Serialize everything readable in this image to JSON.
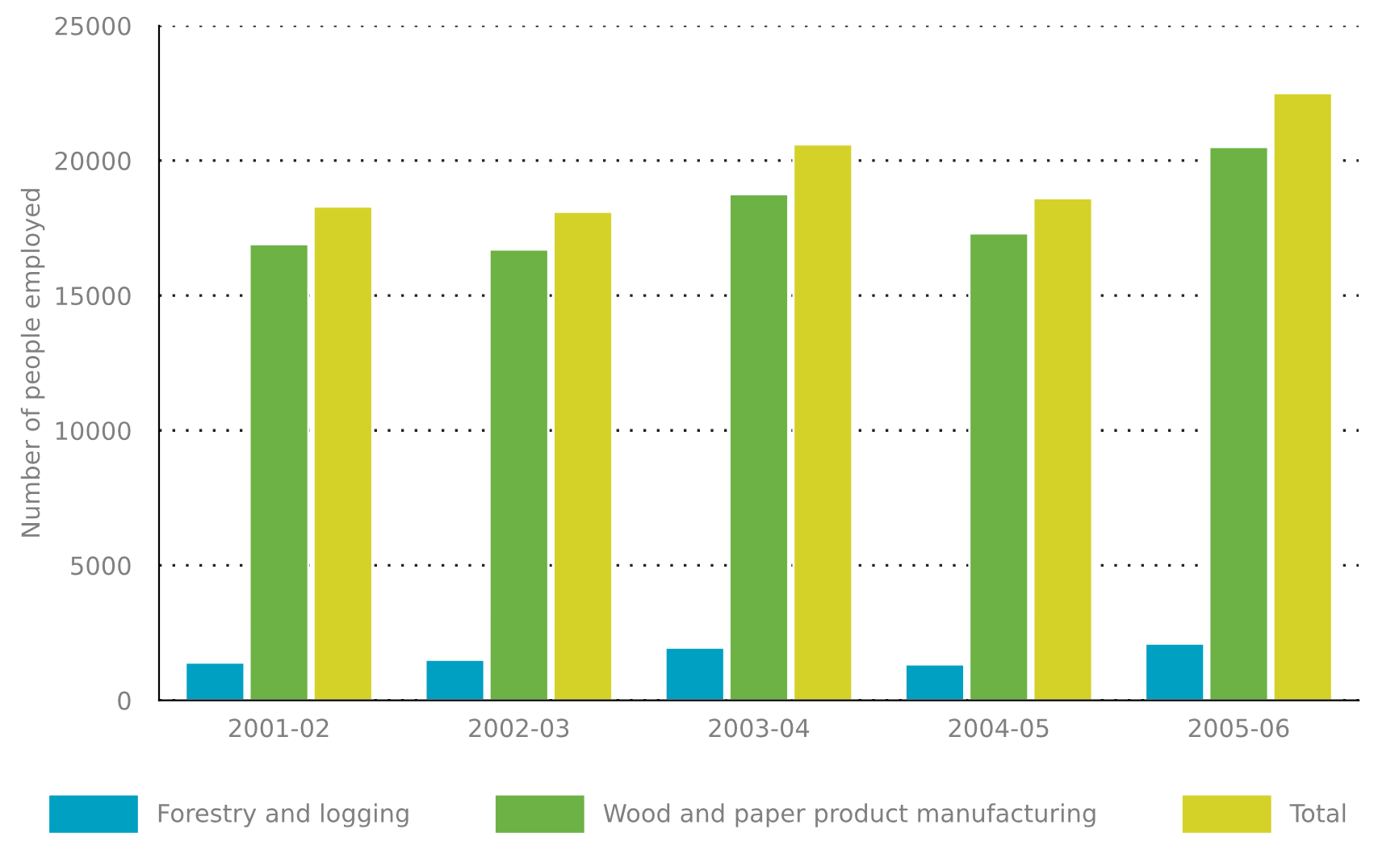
{
  "chart_data": {
    "type": "bar",
    "ylabel": "Number of people employed",
    "categories": [
      "2001-02",
      "2002-03",
      "2003-04",
      "2004-05",
      "2005-06"
    ],
    "series": [
      {
        "name": "Forestry and logging",
        "color": "#00a0c3",
        "values": [
          1400,
          1500,
          1950,
          1330,
          2100
        ]
      },
      {
        "name": "Wood and paper product manufacturing",
        "color": "#6cb244",
        "values": [
          16900,
          16700,
          18750,
          17300,
          20500
        ]
      },
      {
        "name": "Total",
        "color": "#d4d228",
        "values": [
          18300,
          18100,
          20600,
          18600,
          22500
        ]
      }
    ],
    "ylim": [
      0,
      25000
    ],
    "yticks": [
      0,
      5000,
      10000,
      15000,
      20000,
      25000
    ],
    "grid": "y",
    "legend": "bottom"
  }
}
